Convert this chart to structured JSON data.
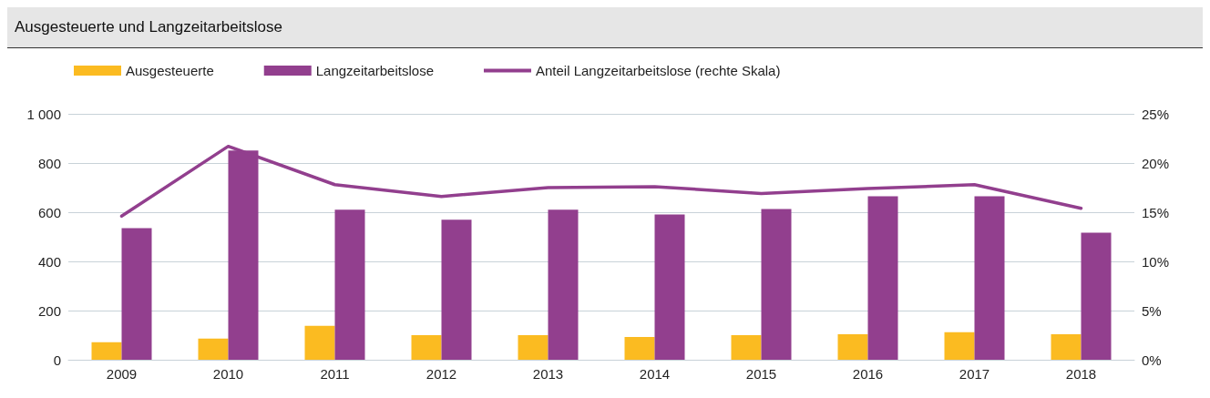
{
  "chart_data": {
    "type": "bar",
    "title": "Ausgesteuerte und Langzeitarbeitslose",
    "categories": [
      "2009",
      "2010",
      "2011",
      "2012",
      "2013",
      "2014",
      "2015",
      "2016",
      "2017",
      "2018"
    ],
    "series": [
      {
        "name": "Ausgesteuerte",
        "color": "#fbbb21",
        "values": [
          71,
          86,
          138,
          100,
          100,
          93,
          100,
          104,
          112,
          104
        ]
      },
      {
        "name": "Langzeitarbeitslose",
        "color": "#923f8e",
        "values": [
          535,
          851,
          610,
          569,
          610,
          591,
          613,
          665,
          665,
          517
        ]
      },
      {
        "name": "Anteil Langzeitarbeitslose (rechte Skala)",
        "type": "line",
        "axis": "y2",
        "color": "#923f8e",
        "values": [
          14.6,
          21.7,
          17.8,
          16.6,
          17.5,
          17.6,
          16.9,
          17.4,
          17.8,
          15.4
        ]
      }
    ],
    "ylim": [
      0,
      1000
    ],
    "yticks": [
      0,
      200,
      400,
      600,
      800,
      {
        "value": 1000,
        "label": "1 000"
      }
    ],
    "y2lim": [
      0,
      25
    ],
    "y2ticks": [
      {
        "value": 0,
        "label": "0%"
      },
      {
        "value": 5,
        "label": "5%"
      },
      {
        "value": 10,
        "label": "10%"
      },
      {
        "value": 15,
        "label": "15%"
      },
      {
        "value": 20,
        "label": "20%"
      },
      {
        "value": 25,
        "label": "25%"
      }
    ],
    "grid": "y",
    "legend": "top left",
    "marker": "none",
    "line_style": "solid"
  }
}
